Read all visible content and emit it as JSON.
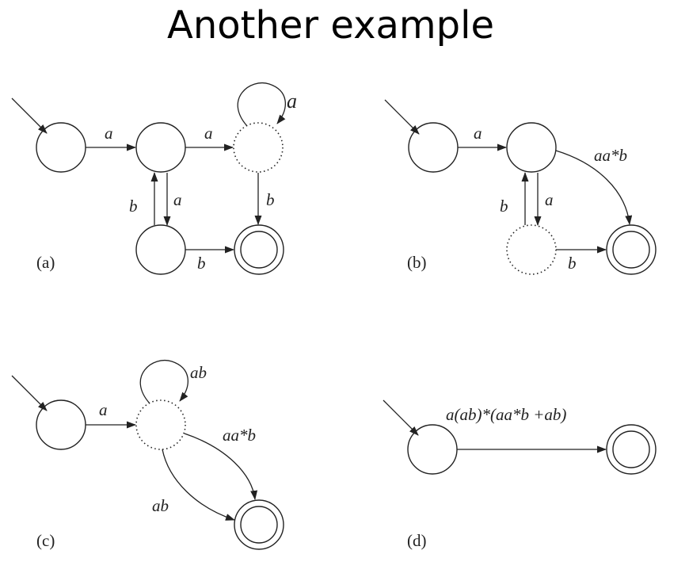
{
  "title": "Another example",
  "panels": [
    {
      "caption": "(a)",
      "labels": {
        "s1_to_s2": "a",
        "s2_to_s3": "a",
        "s3_loop": "a",
        "s4_to_s2": "b",
        "s2_to_s4": "a",
        "s3_to_f": "b",
        "s4_to_f": "b"
      }
    },
    {
      "caption": "(b)",
      "labels": {
        "s1_to_s2": "a",
        "s2_to_f": "aa*b",
        "s4_to_s2": "b",
        "s2_to_s4": "a",
        "s4_to_f": "b"
      }
    },
    {
      "caption": "(c)",
      "labels": {
        "s1_to_s2": "a",
        "s2_loop": "ab",
        "s2_to_f_upper": "aa*b",
        "s2_to_f_lower": "ab"
      }
    },
    {
      "caption": "(d)",
      "labels": {
        "s1_to_f": "a(ab)*(aa*b +ab)"
      }
    }
  ]
}
